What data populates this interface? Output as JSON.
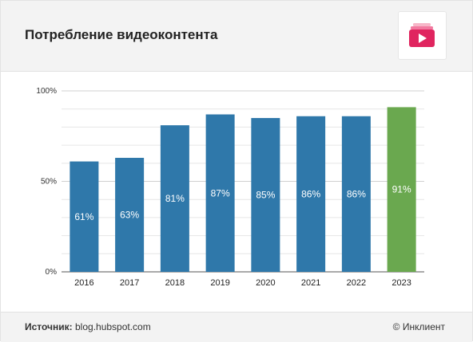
{
  "header": {
    "title": "Потребление видеоконтента",
    "logo_icon": "video-folder-icon"
  },
  "chart_data": {
    "type": "bar",
    "title": "Потребление видеоконтента",
    "categories": [
      "2016",
      "2017",
      "2018",
      "2019",
      "2020",
      "2021",
      "2022",
      "2023"
    ],
    "values": [
      61,
      63,
      81,
      87,
      85,
      86,
      86,
      91
    ],
    "data_labels": [
      "61%",
      "63%",
      "81%",
      "87%",
      "85%",
      "86%",
      "86%",
      "91%"
    ],
    "ylim": [
      0,
      100
    ],
    "yticks": [
      0,
      50,
      100
    ],
    "ytick_labels": [
      "0%",
      "50%",
      "100%"
    ],
    "grid": true,
    "legend": "none",
    "colors": {
      "default": "#2f78aa",
      "highlight": "#6aa84f",
      "highlight_category": "2023"
    }
  },
  "footer": {
    "source_label": "Источник:",
    "source_value": "blog.hubspot.com",
    "copyright": "© Инклиент"
  }
}
